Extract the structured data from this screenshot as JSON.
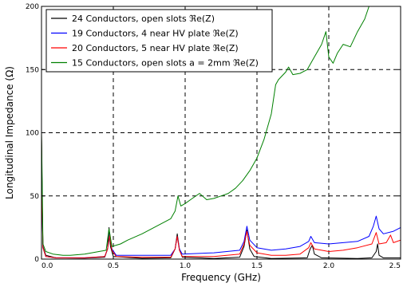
{
  "chart_data": {
    "type": "line",
    "title": "",
    "xlabel": "Frequency (GHz)",
    "ylabel": "Longitudinal Impedance (Ω)",
    "xlim": [
      0,
      2.5
    ],
    "ylim": [
      0,
      200
    ],
    "x_ticks": [
      0,
      0.5,
      1,
      1.5,
      2,
      2.5
    ],
    "x_tick_labels": [
      "0.0",
      "0.5",
      "1.0",
      "1.5",
      "2.0",
      "2.5"
    ],
    "y_ticks": [
      0,
      50,
      100,
      150,
      200
    ],
    "y_tick_labels": [
      "0",
      "50",
      "100",
      "150",
      "200"
    ],
    "grid": "dashed",
    "legend_position": "upper-left",
    "series": [
      {
        "name": "24 Conductors, open slots ℜe(Z)",
        "color": "#000000",
        "points": [
          [
            0,
            100
          ],
          [
            0.005,
            45
          ],
          [
            0.01,
            10
          ],
          [
            0.03,
            3
          ],
          [
            0.1,
            1
          ],
          [
            0.3,
            0.8
          ],
          [
            0.44,
            1.5
          ],
          [
            0.46,
            8
          ],
          [
            0.47,
            25
          ],
          [
            0.48,
            10
          ],
          [
            0.5,
            2
          ],
          [
            0.7,
            0.6
          ],
          [
            0.9,
            1
          ],
          [
            0.93,
            8
          ],
          [
            0.945,
            20
          ],
          [
            0.96,
            8
          ],
          [
            0.98,
            1.5
          ],
          [
            1.2,
            0.5
          ],
          [
            1.38,
            1.5
          ],
          [
            1.41,
            10
          ],
          [
            1.43,
            23
          ],
          [
            1.45,
            8
          ],
          [
            1.48,
            2
          ],
          [
            1.6,
            0.5
          ],
          [
            1.85,
            1
          ],
          [
            1.87,
            8
          ],
          [
            1.885,
            11
          ],
          [
            1.9,
            4
          ],
          [
            1.95,
            1
          ],
          [
            2.2,
            0.5
          ],
          [
            2.3,
            1
          ],
          [
            2.33,
            6
          ],
          [
            2.34,
            12
          ],
          [
            2.35,
            3
          ],
          [
            2.38,
            1
          ],
          [
            2.5,
            1
          ]
        ]
      },
      {
        "name": "19 Conductors, 4 near HV plate ℜe(Z)",
        "color": "#0000ff",
        "points": [
          [
            0,
            95
          ],
          [
            0.005,
            40
          ],
          [
            0.01,
            9
          ],
          [
            0.03,
            2
          ],
          [
            0.1,
            1
          ],
          [
            0.3,
            1
          ],
          [
            0.44,
            2
          ],
          [
            0.46,
            8
          ],
          [
            0.475,
            20
          ],
          [
            0.49,
            8
          ],
          [
            0.52,
            3
          ],
          [
            0.7,
            3
          ],
          [
            0.9,
            3
          ],
          [
            0.93,
            8
          ],
          [
            0.945,
            18
          ],
          [
            0.96,
            8
          ],
          [
            0.98,
            4
          ],
          [
            1.2,
            5
          ],
          [
            1.38,
            7
          ],
          [
            1.41,
            14
          ],
          [
            1.43,
            26
          ],
          [
            1.45,
            15
          ],
          [
            1.5,
            9
          ],
          [
            1.6,
            7
          ],
          [
            1.7,
            8
          ],
          [
            1.8,
            10
          ],
          [
            1.86,
            14
          ],
          [
            1.875,
            18
          ],
          [
            1.9,
            13
          ],
          [
            2.0,
            12
          ],
          [
            2.1,
            13
          ],
          [
            2.2,
            14
          ],
          [
            2.28,
            18
          ],
          [
            2.31,
            26
          ],
          [
            2.33,
            34
          ],
          [
            2.35,
            24
          ],
          [
            2.38,
            20
          ],
          [
            2.45,
            22
          ],
          [
            2.5,
            25
          ]
        ]
      },
      {
        "name": "20 Conductors, 5 near HV plate ℜe(Z)",
        "color": "#ff0000",
        "points": [
          [
            0,
            97
          ],
          [
            0.005,
            42
          ],
          [
            0.01,
            9
          ],
          [
            0.03,
            2
          ],
          [
            0.1,
            1
          ],
          [
            0.3,
            1
          ],
          [
            0.44,
            2
          ],
          [
            0.46,
            8
          ],
          [
            0.475,
            19
          ],
          [
            0.49,
            7
          ],
          [
            0.52,
            2
          ],
          [
            0.7,
            1.5
          ],
          [
            0.9,
            1.5
          ],
          [
            0.93,
            8
          ],
          [
            0.945,
            18
          ],
          [
            0.96,
            7
          ],
          [
            0.98,
            2
          ],
          [
            1.2,
            2
          ],
          [
            1.38,
            4
          ],
          [
            1.41,
            12
          ],
          [
            1.43,
            22
          ],
          [
            1.45,
            11
          ],
          [
            1.5,
            5
          ],
          [
            1.6,
            3
          ],
          [
            1.7,
            3
          ],
          [
            1.8,
            4
          ],
          [
            1.86,
            9
          ],
          [
            1.875,
            13
          ],
          [
            1.9,
            8
          ],
          [
            2.0,
            6
          ],
          [
            2.1,
            7
          ],
          [
            2.2,
            9
          ],
          [
            2.3,
            12
          ],
          [
            2.33,
            21
          ],
          [
            2.35,
            12
          ],
          [
            2.4,
            13
          ],
          [
            2.43,
            19
          ],
          [
            2.45,
            13
          ],
          [
            2.5,
            15
          ]
        ]
      },
      {
        "name": "15 Conductors, open slots a = 2mm ℜe(Z)",
        "color": "#008000",
        "points": [
          [
            0,
            100
          ],
          [
            0.005,
            60
          ],
          [
            0.01,
            12
          ],
          [
            0.03,
            6
          ],
          [
            0.08,
            4
          ],
          [
            0.15,
            3
          ],
          [
            0.2,
            3
          ],
          [
            0.3,
            4
          ],
          [
            0.4,
            6
          ],
          [
            0.45,
            7
          ],
          [
            0.47,
            24
          ],
          [
            0.49,
            10
          ],
          [
            0.55,
            12
          ],
          [
            0.6,
            15
          ],
          [
            0.7,
            20
          ],
          [
            0.8,
            26
          ],
          [
            0.9,
            32
          ],
          [
            0.93,
            38
          ],
          [
            0.95,
            50
          ],
          [
            0.97,
            42
          ],
          [
            1.0,
            44
          ],
          [
            1.05,
            48
          ],
          [
            1.1,
            52
          ],
          [
            1.15,
            47
          ],
          [
            1.2,
            48
          ],
          [
            1.25,
            50
          ],
          [
            1.3,
            52
          ],
          [
            1.35,
            56
          ],
          [
            1.4,
            62
          ],
          [
            1.45,
            70
          ],
          [
            1.5,
            80
          ],
          [
            1.55,
            95
          ],
          [
            1.6,
            115
          ],
          [
            1.63,
            138
          ],
          [
            1.65,
            142
          ],
          [
            1.7,
            148
          ],
          [
            1.72,
            152
          ],
          [
            1.75,
            146
          ],
          [
            1.8,
            147
          ],
          [
            1.85,
            150
          ],
          [
            1.9,
            160
          ],
          [
            1.95,
            170
          ],
          [
            1.98,
            180
          ],
          [
            2.0,
            160
          ],
          [
            2.03,
            155
          ],
          [
            2.06,
            163
          ],
          [
            2.1,
            170
          ],
          [
            2.15,
            168
          ],
          [
            2.2,
            180
          ],
          [
            2.25,
            190
          ],
          [
            2.28,
            200
          ],
          [
            2.5,
            200
          ]
        ]
      }
    ]
  }
}
